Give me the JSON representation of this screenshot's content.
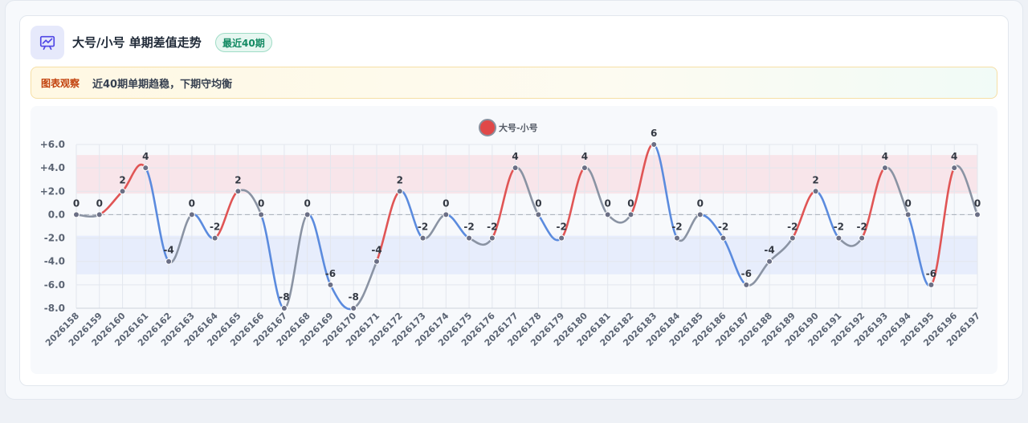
{
  "header": {
    "title": "大号/小号 单期差值走势",
    "badge": "最近40期"
  },
  "note": {
    "tag": "图表观察",
    "text": "近40期单期趋稳，下期守均衡"
  },
  "colors": {
    "up": "#e05555",
    "down": "#5b8bde",
    "neutral": "#8a93a3",
    "point": "#6b6f85",
    "band_high": "#f8e2e6",
    "band_low": "#e4ebfb",
    "legend_dot": "#e04848"
  },
  "chart_data": {
    "type": "line",
    "legend": "大号-小号",
    "categories": [
      "2026158",
      "2026159",
      "2026160",
      "2026161",
      "2026162",
      "2026163",
      "2026164",
      "2026165",
      "2026166",
      "2026167",
      "2026168",
      "2026169",
      "2026170",
      "2026171",
      "2026172",
      "2026173",
      "2026174",
      "2026175",
      "2026176",
      "2026177",
      "2026178",
      "2026179",
      "2026180",
      "2026181",
      "2026182",
      "2026183",
      "2026184",
      "2026185",
      "2026186",
      "2026187",
      "2026188",
      "2026189",
      "2026190",
      "2026191",
      "2026192",
      "2026193",
      "2026194",
      "2026195",
      "2026196",
      "2026197"
    ],
    "series": [
      {
        "name": "大号-小号",
        "values": [
          0,
          0,
          2,
          4,
          -4,
          0,
          -2,
          2,
          0,
          -8,
          0,
          -6,
          -8,
          -4,
          2,
          -2,
          0,
          -2,
          -2,
          4,
          0,
          -2,
          4,
          0,
          0,
          6,
          -2,
          0,
          -2,
          -6,
          -4,
          -2,
          2,
          -2,
          -2,
          4,
          0,
          -6,
          4,
          0
        ]
      }
    ],
    "yticks": [
      "+6.0",
      "+4.0",
      "+2.0",
      "0.0",
      "-2.0",
      "-4.0",
      "-6.0",
      "-8.0"
    ],
    "ylim": [
      -8,
      6
    ],
    "bands": [
      {
        "from": 1.8,
        "to": 5.1,
        "kind": "high"
      },
      {
        "from": -5.1,
        "to": -1.8,
        "kind": "low"
      }
    ],
    "zero_line": "dashed",
    "grid": true,
    "legend_position": "top-center"
  }
}
